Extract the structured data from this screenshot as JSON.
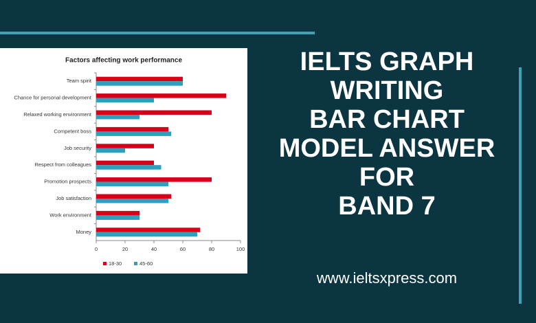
{
  "chart_data": {
    "type": "bar",
    "orientation": "horizontal",
    "title": "Factors affecting work performance",
    "categories": [
      "Team spirit",
      "Chance for personal development",
      "Relaxed working environment",
      "Competent boss",
      "Job security",
      "Respect from colleagues",
      "Promotion prospects",
      "Job satisfaction",
      "Work environment",
      "Money"
    ],
    "series": [
      {
        "name": "18-30",
        "color": "#d7001a",
        "values": [
          60,
          90,
          80,
          50,
          40,
          40,
          80,
          52,
          30,
          72
        ]
      },
      {
        "name": "45-60",
        "color": "#2f9fbe",
        "values": [
          60,
          40,
          30,
          52,
          20,
          45,
          50,
          50,
          30,
          70
        ]
      }
    ],
    "xlim": [
      0,
      100
    ],
    "xticks": [
      0,
      20,
      40,
      60,
      80,
      100
    ],
    "grid": false,
    "legend": "bottom"
  },
  "banner": {
    "heading_lines": [
      "IELTS GRAPH",
      "WRITING",
      "BAR CHART",
      "MODEL ANSWER",
      "FOR",
      "BAND 7"
    ],
    "url": "www.ieltsxpress.com"
  }
}
